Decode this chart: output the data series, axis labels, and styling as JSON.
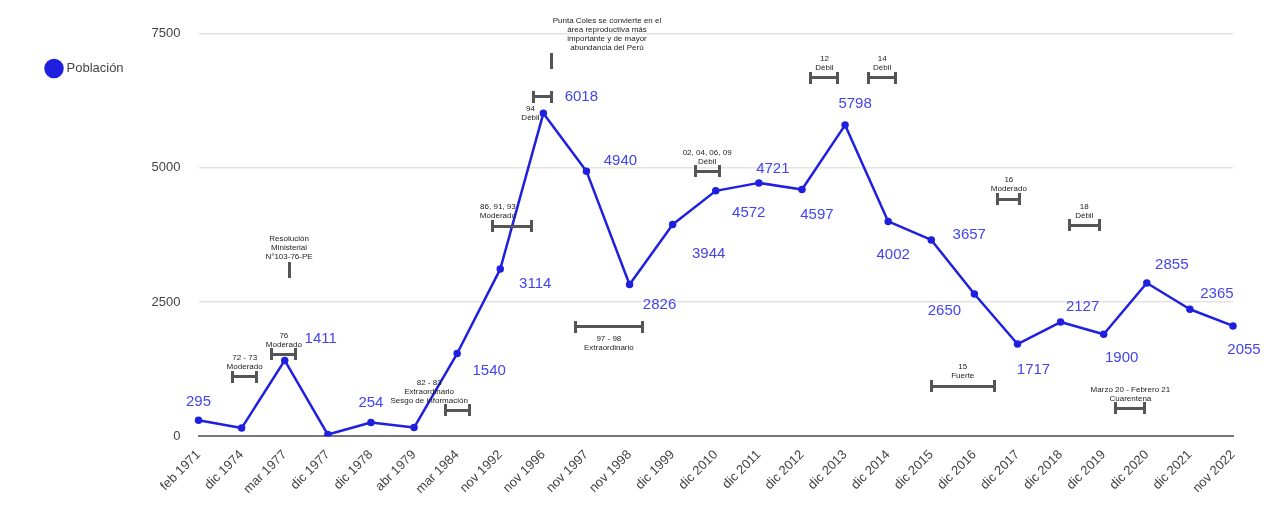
{
  "chart_data": {
    "type": "line",
    "categories": [
      "feb 1971",
      "dic 1974",
      "mar 1977",
      "dic 1977",
      "dic 1978",
      "abr 1979",
      "mar 1984",
      "nov 1992",
      "nov 1996",
      "nov 1997",
      "nov 1998",
      "dic 1999",
      "dic 2010",
      "dic 2011",
      "dic 2012",
      "dic 2013",
      "dic 2014",
      "dic 2015",
      "dic 2016",
      "dic 2017",
      "dic 2018",
      "dic 2019",
      "dic 2020",
      "dic 2021",
      "nov 2022"
    ],
    "series": [
      {
        "name": "Población",
        "color": "#1f1fe0",
        "values": [
          295,
          150,
          1411,
          30,
          254,
          160,
          1540,
          3114,
          6018,
          4940,
          2826,
          3944,
          4572,
          4721,
          4597,
          5798,
          4002,
          3657,
          2650,
          1717,
          2127,
          1900,
          2855,
          2365,
          2055
        ],
        "value_labels": [
          "295",
          null,
          "1411",
          null,
          "254",
          null,
          "1540",
          "3114",
          "6018",
          "4940",
          "2826",
          "3944",
          "4572",
          "4721",
          "4597",
          "5798",
          "4002",
          "3657",
          "2650",
          "1717",
          "2127",
          "1900",
          "2855",
          "2365",
          "2055"
        ]
      }
    ],
    "ylim": [
      0,
      7500
    ],
    "yticks": [
      0,
      2500,
      5000,
      7500
    ],
    "grid": "y",
    "legend": "left",
    "marker": "circle",
    "line_style": "solid",
    "annotations": [
      "72 - 73\nModerado",
      "76\nModerado",
      "Resolución\nMinisterial\nN°103-76-PE",
      "82 - 83\nExtraordinario\nSesgo de información",
      "86, 91, 93\nModerado",
      "94\nDébil",
      "Punta Coles se convierte en el\nárea reproductiva más\nimportante y de mayor\nabundancia del Perú",
      "97 - 98\nExtraordinario",
      "02, 04, 06, 09\nDébil",
      "12\nDébil",
      "14\nDébil",
      "15\nFuerte",
      "16\nModerado",
      "18\nDébil",
      "Marzo 20 - Febrero 21\nCuarentena"
    ]
  }
}
